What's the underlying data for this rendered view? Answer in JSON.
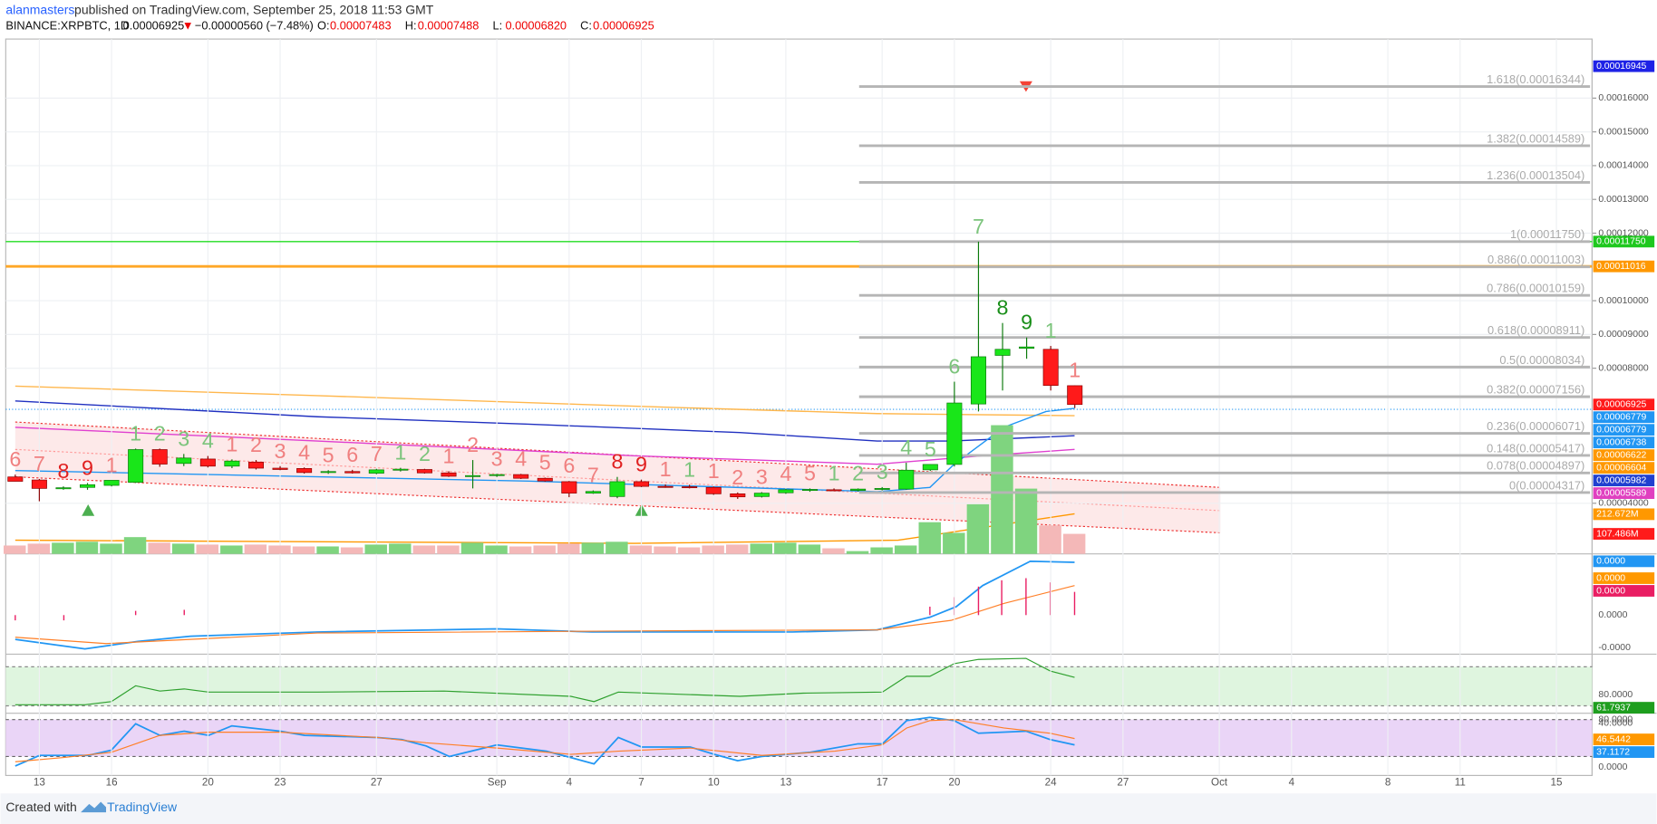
{
  "header": {
    "author": "alanmasters",
    "published": "published on TradingView.com, September 25, 2018 11:53 GMT",
    "symbol": "BINANCE:XRPBTC, 1D",
    "last": "0.00006925",
    "arrow": "▼",
    "change": "−0.00000560 (−7.48%)",
    "ohlc": [
      {
        "name": "O:",
        "value": "0.00007483"
      },
      {
        "name": "H:",
        "value": "0.00007488"
      },
      {
        "name": "L:",
        "value": "0.00006820"
      },
      {
        "name": "C:",
        "value": "0.00006925"
      }
    ]
  },
  "chart_data": {
    "type": "candlestick",
    "up_color": "#19e619",
    "down_color": "#ff1a1a",
    "volume_up_color": "#7fd47f",
    "volume_down_color": "#f4b8b8",
    "ylim": [
      2.5e-05,
      0.0001775
    ],
    "volume_ylim": [
      0,
      2760
    ],
    "yticks": [
      {
        "value": 0.00016,
        "label": "0.00016000"
      },
      {
        "value": 0.00015,
        "label": "0.00015000"
      },
      {
        "value": 0.00014,
        "label": "0.00014000"
      },
      {
        "value": 0.00013,
        "label": "0.00013000"
      },
      {
        "value": 0.00012,
        "label": "0.00012000"
      },
      {
        "value": 0.0001,
        "label": "0.00010000"
      },
      {
        "value": 9e-05,
        "label": "0.00009000"
      },
      {
        "value": 8e-05,
        "label": "0.00008000"
      },
      {
        "value": 4e-05,
        "label": "0.00004000"
      }
    ],
    "xticks": [
      "13",
      "16",
      "20",
      "23",
      "27",
      "Sep",
      "4",
      "7",
      "10",
      "13",
      "17",
      "20",
      "24",
      "27",
      "Oct",
      "4",
      "8",
      "11",
      "15"
    ],
    "open": [
      4.78e-05,
      4.69e-05,
      4.44e-05,
      4.47e-05,
      4.53e-05,
      4.62e-05,
      5.59e-05,
      5.18e-05,
      5.31e-05,
      5.1e-05,
      5.22e-05,
      5.04e-05,
      5.03e-05,
      4.91e-05,
      4.94e-05,
      4.89e-05,
      4.99e-05,
      5e-05,
      4.9e-05,
      4.8e-05,
      4.82e-05,
      4.85e-05,
      4.74e-05,
      4.64e-05,
      4.3e-05,
      4.2e-05,
      4.64e-05,
      4.5e-05,
      4.49e-05,
      4.47e-05,
      4.28e-05,
      4.2e-05,
      4.31e-05,
      4.38e-05,
      4.4e-05,
      4.38e-05,
      4.42e-05,
      4.42e-05,
      4.99e-05,
      5.15e-05,
      6.94e-05,
      8.38e-05,
      8.59e-05,
      8.56e-05,
      7.483e-05
    ],
    "high": [
      4.85e-05,
      4.72e-05,
      4.5e-05,
      4.6e-05,
      4.68e-05,
      5.62e-05,
      5.62e-05,
      5.46e-05,
      5.4e-05,
      5.3e-05,
      5.28e-05,
      5.1e-05,
      5.06e-05,
      4.98e-05,
      4.99e-05,
      5.02e-05,
      5.05e-05,
      5.02e-05,
      4.95e-05,
      5.28e-05,
      4.87e-05,
      4.87e-05,
      4.76e-05,
      4.66e-05,
      4.38e-05,
      4.78e-05,
      4.7e-05,
      4.56e-05,
      4.55e-05,
      4.5e-05,
      4.32e-05,
      4.33e-05,
      4.43e-05,
      4.44e-05,
      4.44e-05,
      4.44e-05,
      4.48e-05,
      5.2e-05,
      5.15e-05,
      7.6e-05,
      0.0001175,
      9.34e-05,
      8.91e-05,
      8.66e-05,
      7.488e-05
    ],
    "low": [
      4.65e-05,
      4.06e-05,
      4.4e-05,
      4.4e-05,
      4.5e-05,
      4.6e-05,
      5.08e-05,
      5.1e-05,
      5.06e-05,
      5.04e-05,
      5e-05,
      4.98e-05,
      4.88e-05,
      4.87e-05,
      4.88e-05,
      4.86e-05,
      4.94e-05,
      4.88e-05,
      4.78e-05,
      4.44e-05,
      4.78e-05,
      4.72e-05,
      4.64e-05,
      4.18e-05,
      4.28e-05,
      4.15e-05,
      4.48e-05,
      4.46e-05,
      4.44e-05,
      4.25e-05,
      4.13e-05,
      4.17e-05,
      4.28e-05,
      4.34e-05,
      4.36e-05,
      4.35e-05,
      4.38e-05,
      4.4e-05,
      4.96e-05,
      5.09e-05,
      6.72e-05,
      7.34e-05,
      8.28e-05,
      7.34e-05,
      6.82e-05
    ],
    "close": [
      4.65e-05,
      4.44e-05,
      4.46e-05,
      4.55e-05,
      4.68e-05,
      5.59e-05,
      5.16e-05,
      5.34e-05,
      5.1e-05,
      5.25e-05,
      5.04e-05,
      5e-05,
      4.91e-05,
      4.94e-05,
      4.9e-05,
      4.99e-05,
      5.01e-05,
      4.9e-05,
      4.8e-05,
      4.82e-05,
      4.85e-05,
      4.74e-05,
      4.66e-05,
      4.3e-05,
      4.35e-05,
      4.64e-05,
      4.5e-05,
      4.49e-05,
      4.47e-05,
      4.28e-05,
      4.19e-05,
      4.3e-05,
      4.4e-05,
      4.41e-05,
      4.39e-05,
      4.42e-05,
      4.44e-05,
      4.98e-05,
      5.15e-05,
      6.97e-05,
      8.34e-05,
      8.56e-05,
      8.63e-05,
      7.49e-05,
      6.925e-05
    ],
    "volume": [
      45,
      55,
      60,
      65,
      55,
      90,
      60,
      55,
      50,
      45,
      50,
      45,
      40,
      40,
      35,
      50,
      55,
      45,
      45,
      60,
      45,
      40,
      45,
      55,
      60,
      65,
      45,
      40,
      35,
      45,
      50,
      55,
      60,
      50,
      30,
      15,
      35,
      45,
      170,
      113,
      266,
      690,
      350,
      153,
      107.486
    ],
    "td_counts": [
      {
        "label": "6",
        "color": "#f08080"
      },
      {
        "label": "7",
        "color": "#f08080"
      },
      {
        "label": "8",
        "color": "#e02020"
      },
      {
        "label": "9",
        "color": "#e02020"
      },
      {
        "label": "1",
        "color": "#f08080"
      },
      {
        "label": "1",
        "color": "#7cc47c"
      },
      {
        "label": "2",
        "color": "#7cc47c"
      },
      {
        "label": "3",
        "color": "#7cc47c"
      },
      {
        "label": "4",
        "color": "#7cc47c"
      },
      {
        "label": "1",
        "color": "#f08080"
      },
      {
        "label": "2",
        "color": "#f08080"
      },
      {
        "label": "3",
        "color": "#f08080"
      },
      {
        "label": "4",
        "color": "#f08080"
      },
      {
        "label": "5",
        "color": "#f08080"
      },
      {
        "label": "6",
        "color": "#f08080"
      },
      {
        "label": "7",
        "color": "#f08080"
      },
      {
        "label": "1",
        "color": "#7cc47c"
      },
      {
        "label": "2",
        "color": "#7cc47c"
      },
      {
        "label": "1",
        "color": "#f08080"
      },
      {
        "label": "2",
        "color": "#f08080"
      },
      {
        "label": "3",
        "color": "#f08080"
      },
      {
        "label": "4",
        "color": "#f08080"
      },
      {
        "label": "5",
        "color": "#f08080"
      },
      {
        "label": "6",
        "color": "#f08080"
      },
      {
        "label": "7",
        "color": "#f08080"
      },
      {
        "label": "8",
        "color": "#e02020"
      },
      {
        "label": "9",
        "color": "#e02020"
      },
      {
        "label": "1",
        "color": "#f08080"
      },
      {
        "label": "1",
        "color": "#7cc47c"
      },
      {
        "label": "1",
        "color": "#f08080"
      },
      {
        "label": "2",
        "color": "#f08080"
      },
      {
        "label": "3",
        "color": "#f08080"
      },
      {
        "label": "4",
        "color": "#f08080"
      },
      {
        "label": "5",
        "color": "#f08080"
      },
      {
        "label": "1",
        "color": "#7cc47c"
      },
      {
        "label": "2",
        "color": "#7cc47c"
      },
      {
        "label": "3",
        "color": "#7cc47c"
      },
      {
        "label": "4",
        "color": "#7cc47c"
      },
      {
        "label": "5",
        "color": "#7cc47c"
      },
      {
        "label": "6",
        "color": "#7cc47c"
      },
      {
        "label": "7",
        "color": "#7cc47c"
      },
      {
        "label": "8",
        "color": "#1a8f1a"
      },
      {
        "label": "9",
        "color": "#1a8f1a"
      },
      {
        "label": "1",
        "color": "#7cc47c"
      },
      {
        "label": "1",
        "color": "#f08080"
      }
    ],
    "fib_levels": [
      {
        "label": "1.618(0.00016344)",
        "value": 0.00016344
      },
      {
        "label": "1.382(0.00014589)",
        "value": 0.00014589
      },
      {
        "label": "1.236(0.00013504)",
        "value": 0.00013504
      },
      {
        "label": "1(0.00011750)",
        "value": 0.0001175
      },
      {
        "label": "0.886(0.00011003)",
        "value": 0.00011003
      },
      {
        "label": "0.786(0.00010159)",
        "value": 0.00010159
      },
      {
        "label": "0.618(0.00008911)",
        "value": 8.911e-05
      },
      {
        "label": "0.5(0.00008034)",
        "value": 8.034e-05
      },
      {
        "label": "0.382(0.00007156)",
        "value": 7.156e-05
      },
      {
        "label": "0.236(0.00006071)",
        "value": 6.071e-05
      },
      {
        "label": "0.148(0.00005417)",
        "value": 5.417e-05
      },
      {
        "label": "0.078(0.00004897)",
        "value": 4.897e-05
      },
      {
        "label": "0(0.00004317)",
        "value": 4.317e-05
      }
    ],
    "levels": [
      {
        "value": 0.0001175,
        "color": "#22dd22"
      },
      {
        "value": 0.00011016,
        "color": "#ffa726"
      }
    ],
    "price_badges": [
      {
        "value": 0.00016945,
        "label": "0.00016945",
        "color": "#1e22e6"
      },
      {
        "value": 0.0001175,
        "label": "0.00011750",
        "color": "#1ec81e"
      },
      {
        "value": 0.00011016,
        "label": "0.00011016",
        "color": "#ff9800"
      },
      {
        "value": 6.925e-05,
        "label": "0.00006925",
        "color": "#ff1a1a"
      },
      {
        "value": 6.779e-05,
        "label": "0.00006779",
        "color": "#2196f3"
      },
      {
        "value": 6.779e-05,
        "label": "0.00006779",
        "color": "#2196f3"
      },
      {
        "value": 6.738e-05,
        "label": "0.00006738",
        "color": "#2196f3"
      },
      {
        "value": 6.622e-05,
        "label": "0.00006622",
        "color": "#ff9800"
      },
      {
        "value": 6.604e-05,
        "label": "0.00006604",
        "color": "#ff9800"
      },
      {
        "value": 5.982e-05,
        "label": "0.00005982",
        "color": "#2040d0"
      },
      {
        "value": 5.589e-05,
        "label": "0.00005589",
        "color": "#e040c0"
      }
    ],
    "volume_badges": [
      {
        "value": 212.672,
        "label": "212.672M",
        "color": "#ff9800"
      },
      {
        "value": 107.486,
        "label": "107.486M",
        "color": "#ff1a1a"
      }
    ]
  },
  "macd_axis": {
    "badges": [
      {
        "label": "0.0000",
        "color": "#2196f3"
      },
      {
        "label": "0.0000",
        "color": "#ff9800"
      },
      {
        "label": "0.0000",
        "color": "#e91e63"
      }
    ],
    "ticks": [
      "0.0000",
      "-0.0000"
    ]
  },
  "rsi": {
    "ylim": [
      0,
      160
    ],
    "ticks": [
      {
        "value": 80,
        "label": "80.0000"
      },
      {
        "value": 40,
        "label": "40.0000"
      }
    ],
    "badge": {
      "value": 61.7937,
      "label": "61.7937",
      "color": "#1e9e1e"
    }
  },
  "stoch": {
    "ylim": [
      0,
      80
    ],
    "ticks": [
      {
        "value": 80,
        "label": "80.0000"
      },
      {
        "value": 0,
        "label": "0.0000"
      }
    ],
    "badges": [
      {
        "value": 46.5442,
        "label": "46.5442",
        "color": "#ff9800"
      },
      {
        "value": 37.1172,
        "label": "37.1172",
        "color": "#2196f3"
      }
    ]
  },
  "footer": {
    "created": "Created with",
    "brand": "TradingView"
  }
}
